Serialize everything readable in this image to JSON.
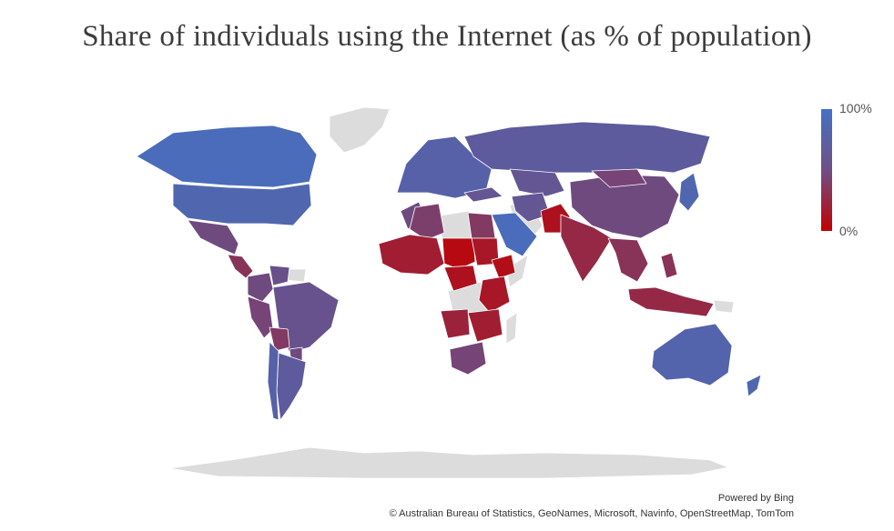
{
  "title": "Share of individuals using the Internet (as % of population)",
  "legend": {
    "max_label": "100%",
    "min_label": "0%",
    "high_color": "#4472c4",
    "low_color": "#c00000",
    "nodata_color": "#dcdcdc"
  },
  "attribution": {
    "powered_by": "Powered by Bing",
    "credits": "© Australian Bureau of Statistics, GeoNames, Microsoft, Navinfo, OpenStreetMap, TomTom"
  },
  "regions": [
    {
      "name": "Canada",
      "level": 0.95
    },
    {
      "name": "USA",
      "level": 0.9
    },
    {
      "name": "Mexico",
      "level": 0.65
    },
    {
      "name": "Central America",
      "level": 0.45
    },
    {
      "name": "Colombia",
      "level": 0.65
    },
    {
      "name": "Venezuela",
      "level": 0.7
    },
    {
      "name": "Brazil",
      "level": 0.72
    },
    {
      "name": "Peru",
      "level": 0.6
    },
    {
      "name": "Bolivia",
      "level": 0.5
    },
    {
      "name": "Paraguay",
      "level": 0.65
    },
    {
      "name": "Argentina",
      "level": 0.8
    },
    {
      "name": "Chile",
      "level": 0.85
    },
    {
      "name": "Europe",
      "level": 0.85
    },
    {
      "name": "Russia",
      "level": 0.8
    },
    {
      "name": "Kazakhstan",
      "level": 0.75
    },
    {
      "name": "Turkey",
      "level": 0.75
    },
    {
      "name": "Iran",
      "level": 0.75
    },
    {
      "name": "Saudi Arabia",
      "level": 0.95
    },
    {
      "name": "Pakistan",
      "level": 0.15
    },
    {
      "name": "India",
      "level": 0.35
    },
    {
      "name": "China",
      "level": 0.65
    },
    {
      "name": "Mongolia",
      "level": 0.6
    },
    {
      "name": "Southeast Asia",
      "level": 0.45
    },
    {
      "name": "Japan",
      "level": 0.9
    },
    {
      "name": "Indonesia",
      "level": 0.35
    },
    {
      "name": "Philippines",
      "level": 0.45
    },
    {
      "name": "Australia",
      "level": 0.88
    },
    {
      "name": "New Zealand",
      "level": 0.9
    },
    {
      "name": "Morocco",
      "level": 0.65
    },
    {
      "name": "Algeria",
      "level": 0.55
    },
    {
      "name": "Egypt",
      "level": 0.5
    },
    {
      "name": "West Africa",
      "level": 0.25
    },
    {
      "name": "Niger-Chad",
      "level": 0.08
    },
    {
      "name": "Sudan",
      "level": 0.2
    },
    {
      "name": "Ethiopia",
      "level": 0.12
    },
    {
      "name": "Central Africa",
      "level": 0.15
    },
    {
      "name": "East Africa",
      "level": 0.2
    },
    {
      "name": "Angola",
      "level": 0.3
    },
    {
      "name": "Southern Africa",
      "level": 0.25
    },
    {
      "name": "South Africa",
      "level": 0.6
    }
  ],
  "nodata": [
    "Greenland",
    "Libya",
    "Arabian Peninsula",
    "DR Congo",
    "Somalia",
    "Madagascar",
    "Guianas",
    "Antarctica",
    "Papua New Guinea"
  ]
}
